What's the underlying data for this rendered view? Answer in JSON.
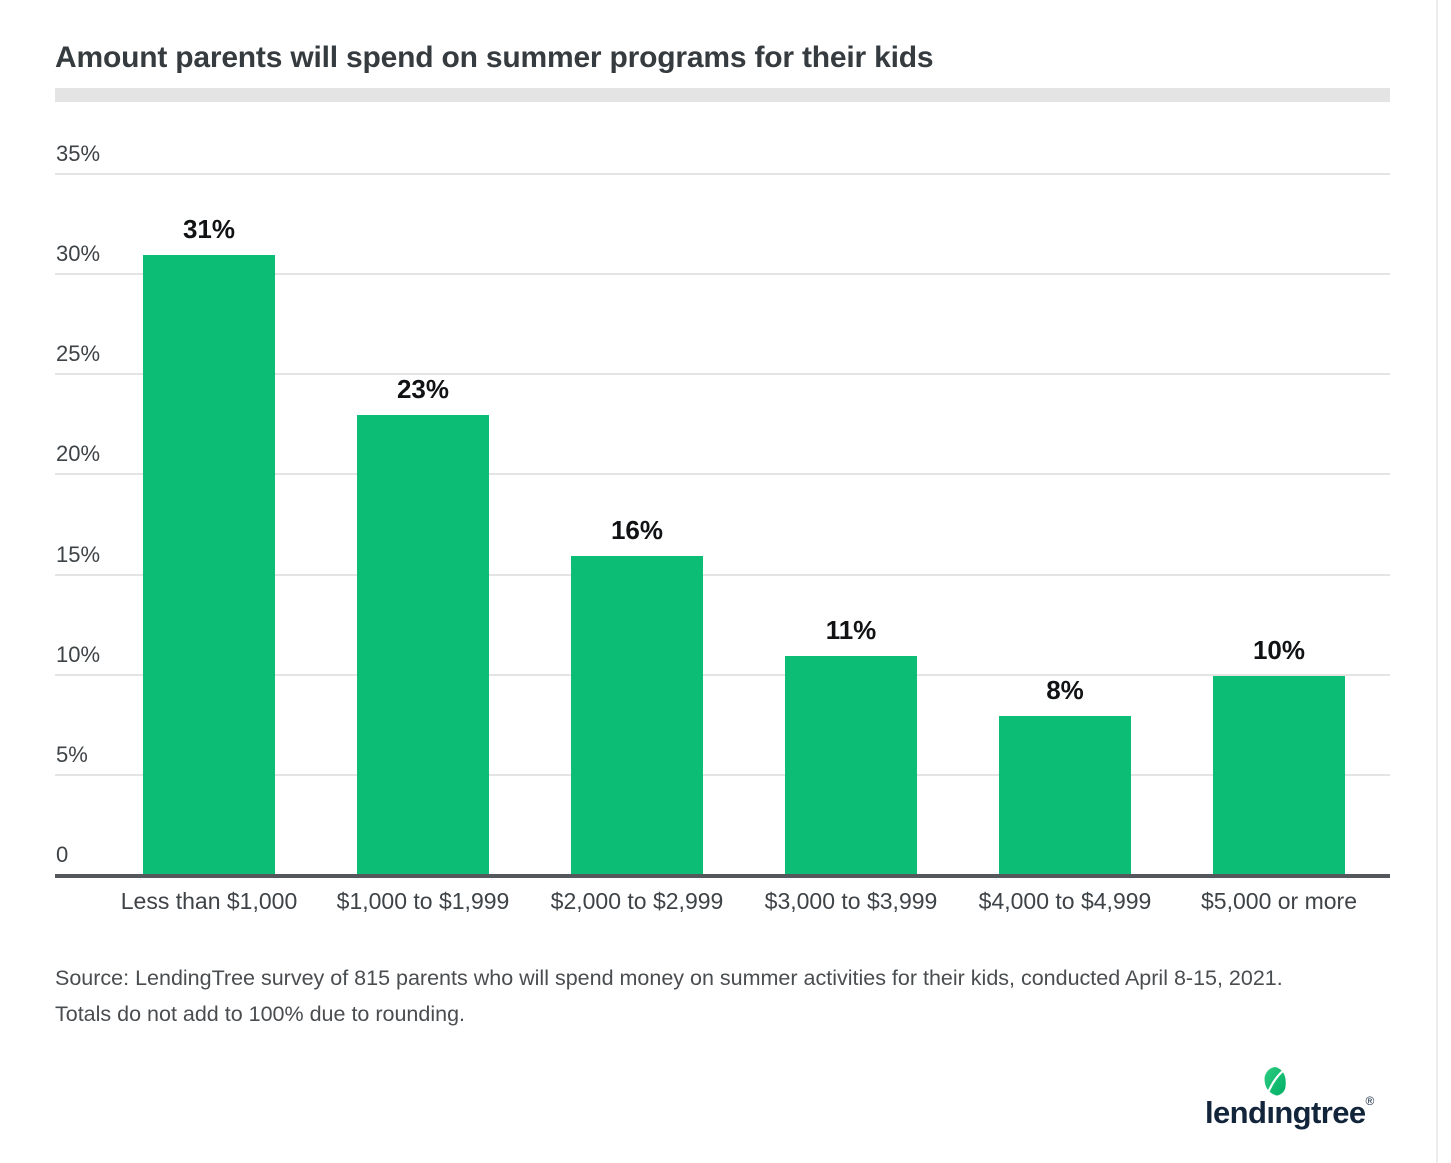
{
  "title": "Amount parents will spend on summer programs for their kids",
  "source": {
    "line1": "Source: LendingTree survey of 815 parents who will spend money on summer activities for their kids, conducted April 8-15, 2021.",
    "line2": "Totals do not add to 100% due to rounding."
  },
  "branding": {
    "logo_text": "lendingtree",
    "registered_mark": "®"
  },
  "colors": {
    "bar_green": "#0CBE75",
    "logo_navy": "#13253A",
    "leaf_green_light": "#2ECC7F",
    "leaf_green_dark": "#00AF66",
    "baseline_gray": "#54575B",
    "gridline_gray": "#E4E4E4",
    "title_text": "#353B3F",
    "axis_text": "#3E4347",
    "source_text": "#4A4D50"
  },
  "chart_data": {
    "type": "bar",
    "title": "Amount parents will spend on summer programs for their kids",
    "categories": [
      "Less than $1,000",
      "$1,000 to $1,999",
      "$2,000 to $2,999",
      "$3,000 to $3,999",
      "$4,000 to $4,999",
      "$5,000 or more"
    ],
    "values": [
      31,
      23,
      16,
      11,
      8,
      10
    ],
    "value_labels": [
      "31%",
      "23%",
      "16%",
      "11%",
      "8%",
      "10%"
    ],
    "xlabel": "",
    "ylabel": "",
    "ylim": [
      0,
      35
    ],
    "yticks": [
      35,
      30,
      25,
      20,
      15,
      10,
      5,
      0
    ],
    "ytick_labels": [
      "35%",
      "30%",
      "25%",
      "20%",
      "15%",
      "10%",
      "5%",
      "0"
    ],
    "grid": true,
    "legend": false,
    "bar_color": "#0CBE75"
  }
}
